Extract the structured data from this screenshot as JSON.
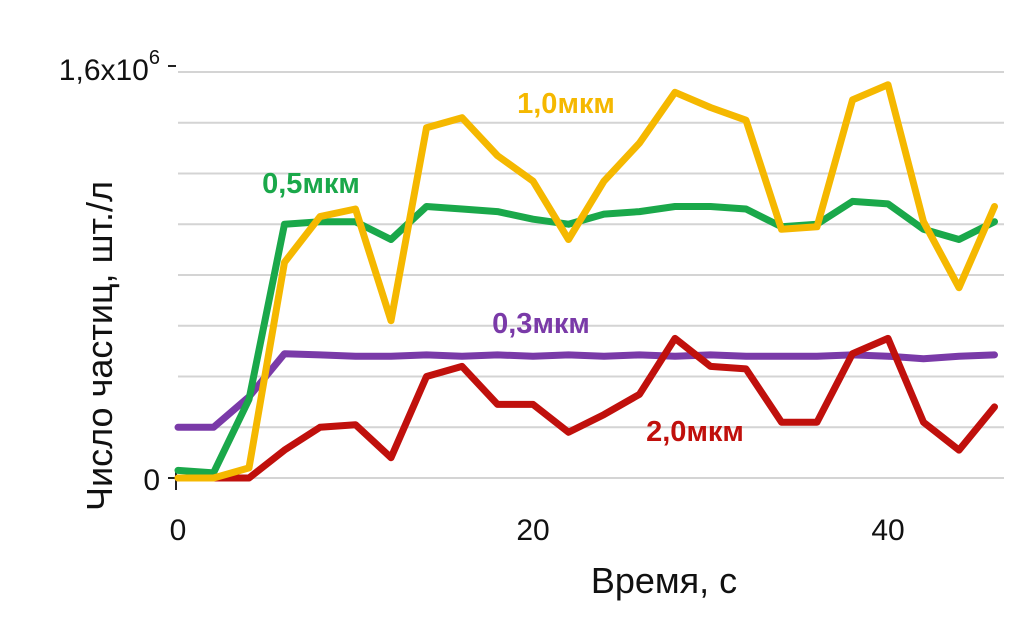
{
  "chart_data": {
    "type": "line",
    "xlabel": "Время, с",
    "ylabel": "Число частиц, шт./л",
    "x_ticks": [
      "0",
      "20",
      "40"
    ],
    "y_ticks": {
      "bottom": "0",
      "top_base": "1,6x10",
      "top_exp": "6"
    },
    "xlim": [
      0,
      46
    ],
    "ylim": [
      0,
      1600000
    ],
    "grid": "horizontal",
    "x": [
      0,
      2,
      4,
      6,
      8,
      10,
      12,
      14,
      16,
      18,
      20,
      22,
      24,
      26,
      28,
      30,
      32,
      34,
      36,
      38,
      40,
      42,
      44,
      46
    ],
    "series": [
      {
        "name": "1,0мкм",
        "color": "#f5b800",
        "values": [
          0,
          0,
          40000,
          850000,
          1030000,
          1060000,
          620000,
          1380000,
          1420000,
          1270000,
          1170000,
          940000,
          1170000,
          1320000,
          1520000,
          1460000,
          1410000,
          980000,
          990000,
          1490000,
          1550000,
          1010000,
          750000,
          1070000
        ]
      },
      {
        "name": "0,5мкм",
        "color": "#1aa84a",
        "values": [
          30000,
          20000,
          310000,
          1000000,
          1010000,
          1010000,
          940000,
          1070000,
          1060000,
          1050000,
          1020000,
          1000000,
          1040000,
          1050000,
          1070000,
          1070000,
          1060000,
          990000,
          1000000,
          1090000,
          1080000,
          980000,
          940000,
          1010000
        ]
      },
      {
        "name": "0,3мкм",
        "color": "#7a3aa8",
        "values": [
          200000,
          200000,
          320000,
          490000,
          485000,
          480000,
          480000,
          485000,
          480000,
          485000,
          480000,
          485000,
          480000,
          485000,
          480000,
          485000,
          480000,
          480000,
          480000,
          485000,
          480000,
          470000,
          480000,
          485000
        ]
      },
      {
        "name": "2,0мкм",
        "color": "#c0100c",
        "values": [
          0,
          0,
          0,
          110000,
          200000,
          210000,
          80000,
          400000,
          440000,
          290000,
          290000,
          180000,
          250000,
          330000,
          550000,
          440000,
          430000,
          220000,
          220000,
          490000,
          550000,
          220000,
          110000,
          280000
        ]
      }
    ]
  }
}
